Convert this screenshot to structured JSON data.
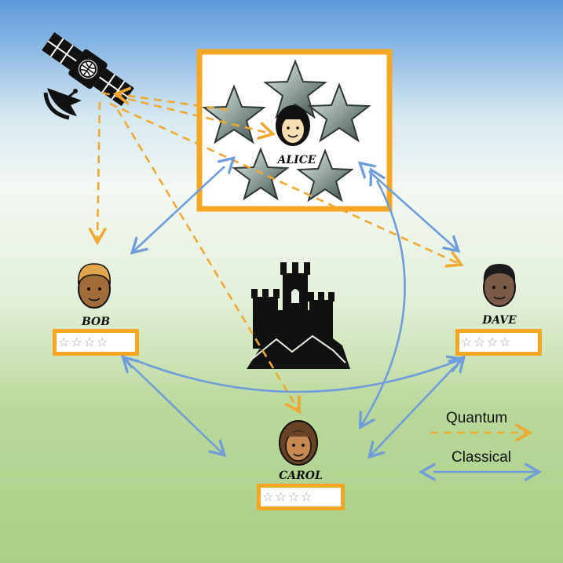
{
  "parties": {
    "alice": {
      "name": "ALICE"
    },
    "bob": {
      "name": "BOB",
      "stars": [
        "☆",
        "☆",
        "☆",
        "☆"
      ]
    },
    "carol": {
      "name": "CAROL",
      "stars": [
        "☆",
        "☆",
        "☆",
        "☆"
      ]
    },
    "dave": {
      "name": "DAVE",
      "stars": [
        "☆",
        "☆",
        "☆",
        "☆"
      ]
    }
  },
  "legend": {
    "quantum_label": "Quantum",
    "classical_label": "Classical"
  },
  "colors": {
    "quantum": "#f0a830",
    "classical": "#6e9ddb",
    "box_border": "#f5a623"
  },
  "icons": [
    "satellite-icon",
    "castle-icon",
    "star-icon",
    "face-icon"
  ]
}
